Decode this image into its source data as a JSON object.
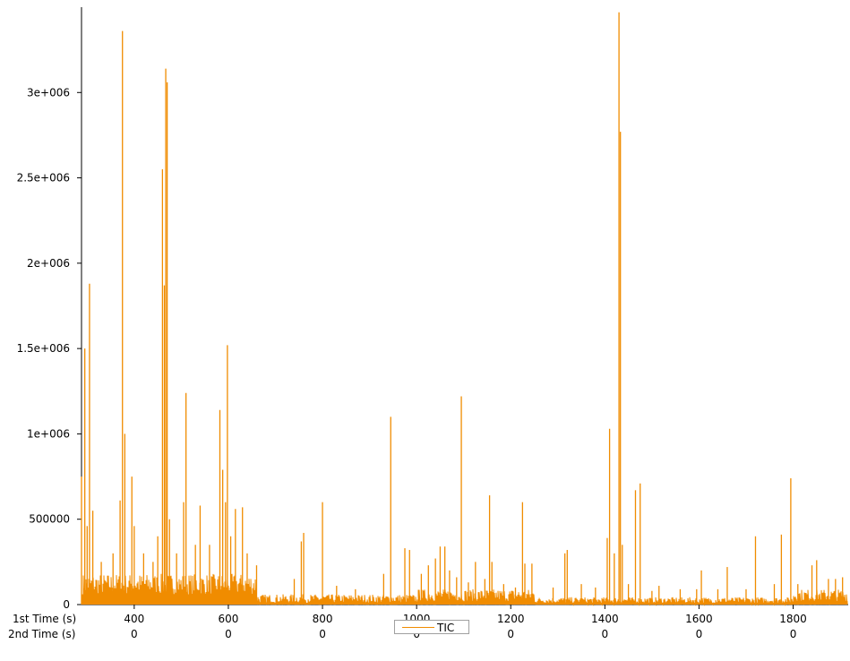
{
  "chart_data": {
    "type": "line",
    "series": [
      {
        "name": "TIC",
        "color": "#f08c00"
      }
    ],
    "x_axis_rows": [
      {
        "label": "1st Time (s)",
        "ticks": [
          400,
          600,
          800,
          1000,
          1200,
          1400,
          1600,
          1800
        ]
      },
      {
        "label": "2nd Time (s)",
        "ticks": [
          "0",
          "0",
          "0",
          "0",
          "0",
          "0",
          "0",
          "0"
        ]
      }
    ],
    "xlim": [
      288,
      1917
    ],
    "ylim": [
      0,
      3500000
    ],
    "y_ticks": [
      {
        "value": 0,
        "label": "0"
      },
      {
        "value": 500000,
        "label": "500000"
      },
      {
        "value": 1000000,
        "label": "1e+006"
      },
      {
        "value": 1500000,
        "label": "1.5e+006"
      },
      {
        "value": 2000000,
        "label": "2e+006"
      },
      {
        "value": 2500000,
        "label": "2.5e+006"
      },
      {
        "value": 3000000,
        "label": "3e+006"
      }
    ],
    "peaks": [
      [
        288,
        750000
      ],
      [
        295,
        1500000
      ],
      [
        300,
        460000
      ],
      [
        305,
        1880000
      ],
      [
        312,
        550000
      ],
      [
        330,
        250000
      ],
      [
        355,
        300000
      ],
      [
        370,
        610000
      ],
      [
        375,
        3360000
      ],
      [
        380,
        1000000
      ],
      [
        395,
        750000
      ],
      [
        400,
        460000
      ],
      [
        420,
        300000
      ],
      [
        440,
        250000
      ],
      [
        450,
        400000
      ],
      [
        460,
        2550000
      ],
      [
        464,
        1870000
      ],
      [
        467,
        3140000
      ],
      [
        470,
        3060000
      ],
      [
        475,
        500000
      ],
      [
        490,
        300000
      ],
      [
        505,
        600000
      ],
      [
        510,
        1240000
      ],
      [
        530,
        350000
      ],
      [
        540,
        580000
      ],
      [
        560,
        350000
      ],
      [
        582,
        1140000
      ],
      [
        588,
        790000
      ],
      [
        594,
        600000
      ],
      [
        598,
        1520000
      ],
      [
        605,
        400000
      ],
      [
        615,
        560000
      ],
      [
        630,
        570000
      ],
      [
        640,
        300000
      ],
      [
        660,
        230000
      ],
      [
        740,
        150000
      ],
      [
        755,
        370000
      ],
      [
        760,
        420000
      ],
      [
        800,
        600000
      ],
      [
        830,
        110000
      ],
      [
        870,
        90000
      ],
      [
        930,
        180000
      ],
      [
        945,
        1100000
      ],
      [
        975,
        330000
      ],
      [
        985,
        320000
      ],
      [
        1010,
        180000
      ],
      [
        1025,
        230000
      ],
      [
        1040,
        270000
      ],
      [
        1050,
        340000
      ],
      [
        1060,
        340000
      ],
      [
        1070,
        200000
      ],
      [
        1085,
        160000
      ],
      [
        1095,
        1220000
      ],
      [
        1110,
        130000
      ],
      [
        1125,
        250000
      ],
      [
        1145,
        150000
      ],
      [
        1155,
        640000
      ],
      [
        1160,
        250000
      ],
      [
        1185,
        120000
      ],
      [
        1210,
        100000
      ],
      [
        1225,
        600000
      ],
      [
        1230,
        240000
      ],
      [
        1245,
        240000
      ],
      [
        1290,
        100000
      ],
      [
        1315,
        300000
      ],
      [
        1320,
        320000
      ],
      [
        1350,
        120000
      ],
      [
        1380,
        100000
      ],
      [
        1405,
        390000
      ],
      [
        1410,
        1030000
      ],
      [
        1420,
        300000
      ],
      [
        1430,
        3470000
      ],
      [
        1433,
        2770000
      ],
      [
        1437,
        350000
      ],
      [
        1450,
        120000
      ],
      [
        1465,
        670000
      ],
      [
        1475,
        710000
      ],
      [
        1500,
        80000
      ],
      [
        1515,
        110000
      ],
      [
        1560,
        90000
      ],
      [
        1595,
        90000
      ],
      [
        1605,
        200000
      ],
      [
        1640,
        90000
      ],
      [
        1660,
        220000
      ],
      [
        1700,
        90000
      ],
      [
        1720,
        400000
      ],
      [
        1760,
        120000
      ],
      [
        1775,
        410000
      ],
      [
        1795,
        740000
      ],
      [
        1810,
        120000
      ],
      [
        1840,
        230000
      ],
      [
        1850,
        260000
      ],
      [
        1875,
        150000
      ],
      [
        1890,
        150000
      ],
      [
        1905,
        160000
      ]
    ]
  },
  "legend": {
    "label": "TIC"
  }
}
